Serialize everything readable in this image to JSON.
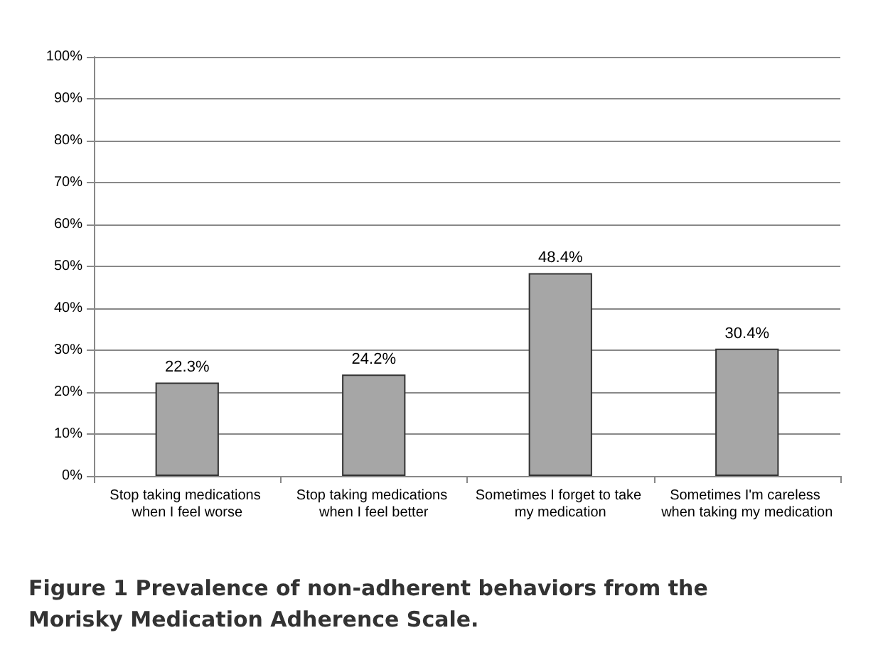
{
  "chart_data": {
    "type": "bar",
    "title": "Figure 1 Prevalence of non-adherent behaviors from the Morisky Medication Adherence Scale.",
    "categories": [
      "Stop taking medications when I feel worse",
      "Stop taking medications when I feel better",
      "Sometimes I forget to take my medication",
      "Sometimes I'm careless when taking my medication"
    ],
    "values": [
      22.3,
      24.2,
      48.4,
      30.4
    ],
    "color": "#a6a6a6",
    "value_labels": [
      "22.3%",
      "24.2%",
      "48.4%",
      "30.4%"
    ],
    "ylim": [
      0,
      100
    ],
    "yticks": [
      {
        "value": 0,
        "label": "0%"
      },
      {
        "value": 10,
        "label": "10%"
      },
      {
        "value": 20,
        "label": "20%"
      },
      {
        "value": 30,
        "label": "30%"
      },
      {
        "value": 40,
        "label": "40%"
      },
      {
        "value": 50,
        "label": "50%"
      },
      {
        "value": 60,
        "label": "60%"
      },
      {
        "value": 70,
        "label": "70%"
      },
      {
        "value": 80,
        "label": "80%"
      },
      {
        "value": 90,
        "label": "90%"
      },
      {
        "value": 100,
        "label": "100%"
      }
    ],
    "grid": "y"
  }
}
